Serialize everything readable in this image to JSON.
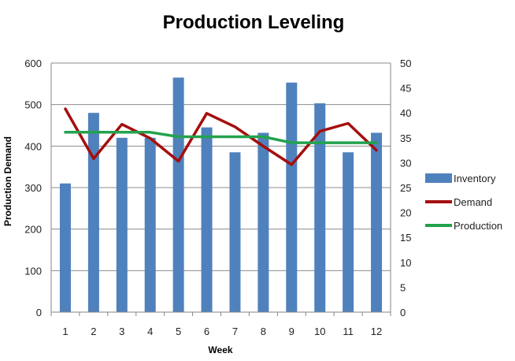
{
  "chart_data": {
    "type": "bar",
    "title": "Production Leveling",
    "xlabel": "Week",
    "ylabel": "Production Demand",
    "categories": [
      "1",
      "2",
      "3",
      "4",
      "5",
      "6",
      "7",
      "8",
      "9",
      "10",
      "11",
      "12"
    ],
    "y_left": {
      "min": 0,
      "max": 600,
      "ticks": [
        "0",
        "100",
        "200",
        "300",
        "400",
        "500",
        "600"
      ]
    },
    "y_right": {
      "min": 0,
      "max": 50,
      "ticks": [
        "0",
        "5",
        "10",
        "15",
        "20",
        "25",
        "30",
        "35",
        "40",
        "45",
        "50"
      ]
    },
    "grid": true,
    "legend_position": "right",
    "series": [
      {
        "name": "Inventory",
        "kind": "bar",
        "axis": "left",
        "color": "#4F81BD",
        "values": [
          310,
          480,
          420,
          420,
          565,
          445,
          385,
          432,
          553,
          503,
          385,
          432
        ]
      },
      {
        "name": "Demand",
        "kind": "line",
        "axis": "right",
        "color": "#A50E0E",
        "values": [
          40.8,
          30.8,
          37.7,
          34.9,
          30.3,
          39.9,
          37.2,
          33.3,
          29.6,
          36.3,
          37.9,
          32.5
        ]
      },
      {
        "name": "Production",
        "kind": "line",
        "axis": "right",
        "color": "#23A24D",
        "values": [
          36.1,
          36.1,
          36.1,
          36.1,
          35.2,
          35.2,
          35.2,
          35.2,
          34,
          34,
          34,
          34
        ]
      }
    ]
  }
}
